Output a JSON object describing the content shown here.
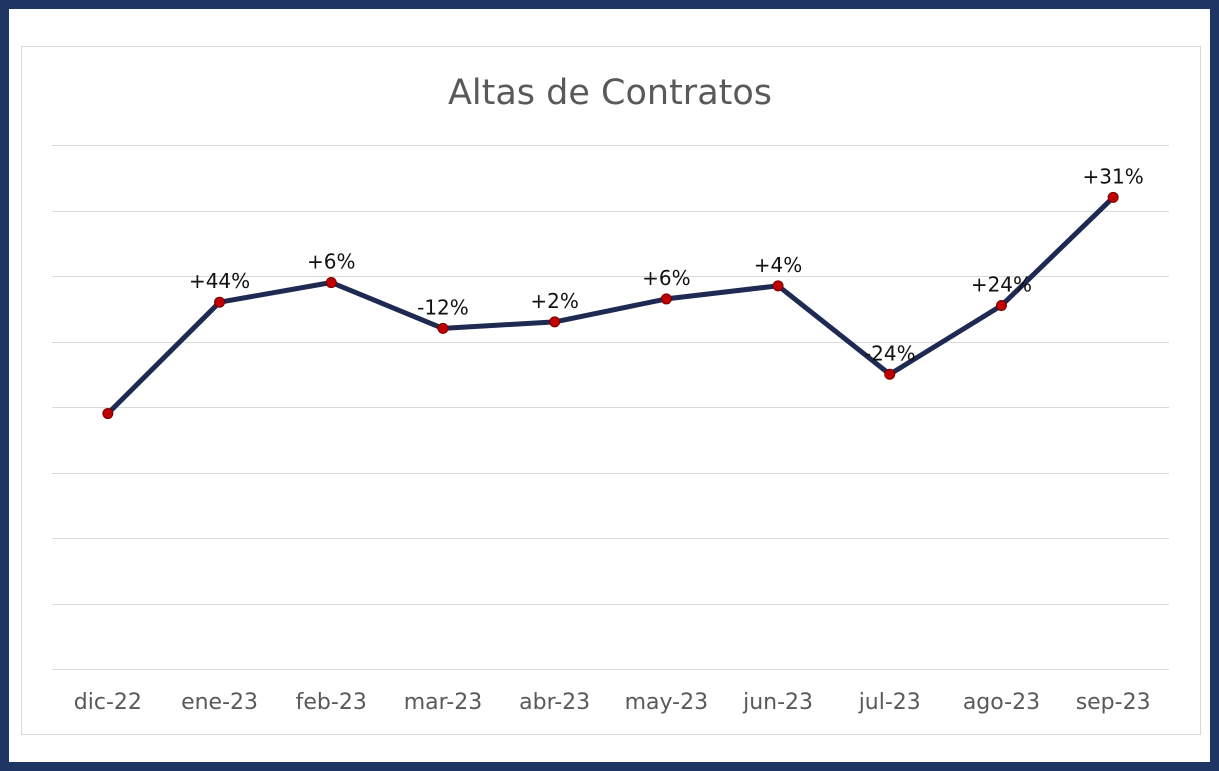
{
  "chart_data": {
    "type": "line",
    "title": "Altas de Contratos",
    "categories": [
      "dic-22",
      "ene-23",
      "feb-23",
      "mar-23",
      "abr-23",
      "may-23",
      "jun-23",
      "jul-23",
      "ago-23",
      "sep-23"
    ],
    "series": [
      {
        "name": "Altas de Contratos",
        "values": [
          3.9,
          5.6,
          5.9,
          5.2,
          5.3,
          5.65,
          5.85,
          4.5,
          5.55,
          7.2
        ],
        "data_labels": [
          "",
          "+44%",
          "+6%",
          "-12%",
          "+2%",
          "+6%",
          "+4%",
          "-24%",
          "+24%",
          "+31%"
        ]
      }
    ],
    "ylim": [
      0,
      8
    ],
    "y_gridlines": [
      0,
      1,
      2,
      3,
      4,
      5,
      6,
      7,
      8
    ],
    "xlabel": "",
    "ylabel": "",
    "grid": true,
    "show_y_axis_labels": false
  },
  "colors": {
    "frame": "#1f3564",
    "line": "#1f2a52",
    "marker_fill": "#c00000",
    "marker_stroke": "#7a0000",
    "grid": "#d9d9d9",
    "title": "#595959",
    "ticks": "#595959",
    "labels": "#111111"
  }
}
